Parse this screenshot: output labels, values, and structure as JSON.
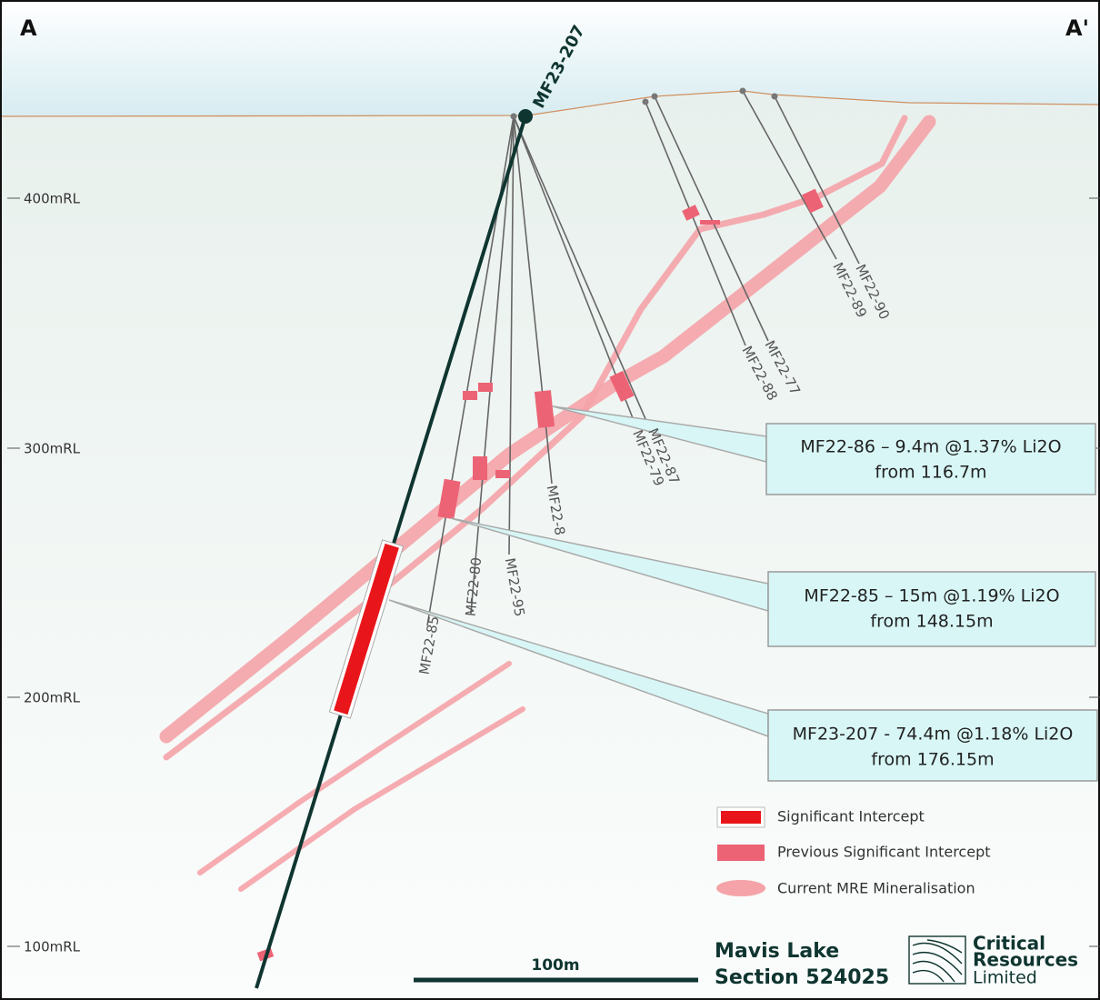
{
  "section_ends": {
    "left": "A",
    "right": "A'"
  },
  "main_hole": "MF23-207",
  "elevation_labels": [
    "400mRL",
    "300mRL",
    "200mRL",
    "100mRL"
  ],
  "holes": [
    "MF22-90",
    "MF22-89",
    "MF22-77",
    "MF22-88",
    "MF22-87",
    "MF22-79",
    "MF22-8",
    "MF22-95",
    "MF22-80",
    "MF22-85"
  ],
  "callouts": [
    {
      "line1": "MF22-86 – 9.4m @1.37% Li2O",
      "line2": "from 116.7m"
    },
    {
      "line1": "MF22-85 – 15m @1.19% Li2O",
      "line2": "from 148.15m"
    },
    {
      "line1": "MF23-207 - 74.4m @1.18% Li2O",
      "line2": "from 176.15m"
    }
  ],
  "legend": [
    "Significant Intercept",
    "Previous Significant Intercept",
    "Current MRE Mineralisation"
  ],
  "scale_bar": "100m",
  "title": {
    "line1": "Mavis Lake",
    "line2": "Section 524025"
  },
  "logo": [
    "Critical",
    "Resources",
    "Limited"
  ]
}
